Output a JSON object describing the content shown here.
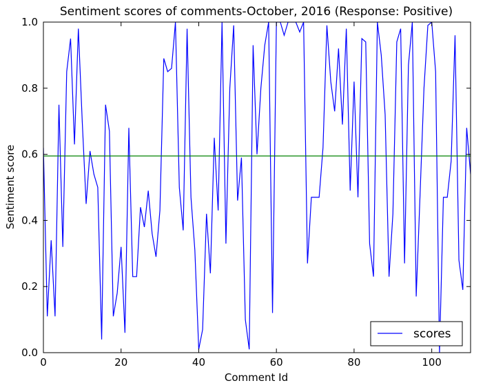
{
  "chart_data": {
    "type": "line",
    "title": "Sentiment scores of comments-October, 2016 (Response: Positive)",
    "xlabel": "Comment Id",
    "ylabel": "Sentiment score",
    "xlim": [
      0,
      110
    ],
    "ylim": [
      0.0,
      1.0
    ],
    "xticks": [
      "0",
      "20",
      "40",
      "60",
      "80",
      "100"
    ],
    "yticks": [
      "0.0",
      "0.2",
      "0.4",
      "0.6",
      "0.8",
      "1.0"
    ],
    "grid": false,
    "legend_placement": "bottom-right",
    "series": [
      {
        "name": "scores",
        "color": "#0000ff",
        "x": [
          0,
          1,
          2,
          3,
          4,
          5,
          6,
          7,
          8,
          9,
          10,
          11,
          12,
          13,
          14,
          15,
          16,
          17,
          18,
          19,
          20,
          21,
          22,
          23,
          24,
          25,
          26,
          27,
          28,
          29,
          30,
          31,
          32,
          33,
          34,
          35,
          36,
          37,
          38,
          39,
          40,
          41,
          42,
          43,
          44,
          45,
          46,
          47,
          48,
          49,
          50,
          51,
          52,
          53,
          54,
          55,
          56,
          57,
          58,
          59,
          60,
          61,
          62,
          63,
          64,
          65,
          66,
          67,
          68,
          69,
          70,
          71,
          72,
          73,
          74,
          75,
          76,
          77,
          78,
          79,
          80,
          81,
          82,
          83,
          84,
          85,
          86,
          87,
          88,
          89,
          90,
          91,
          92,
          93,
          94,
          95,
          96,
          97,
          98,
          99,
          100,
          101,
          102,
          103,
          104,
          105,
          106,
          107,
          108,
          109,
          110
        ],
        "values": [
          0.62,
          0.11,
          0.34,
          0.11,
          0.75,
          0.32,
          0.85,
          0.95,
          0.63,
          0.98,
          0.7,
          0.45,
          0.61,
          0.54,
          0.5,
          0.04,
          0.75,
          0.67,
          0.11,
          0.18,
          0.32,
          0.06,
          0.68,
          0.23,
          0.23,
          0.44,
          0.38,
          0.49,
          0.36,
          0.29,
          0.43,
          0.89,
          0.85,
          0.86,
          1.0,
          0.5,
          0.37,
          0.98,
          0.47,
          0.31,
          0.01,
          0.07,
          0.42,
          0.24,
          0.65,
          0.43,
          1.0,
          0.33,
          0.8,
          0.99,
          0.46,
          0.59,
          0.1,
          0.01,
          0.93,
          0.6,
          0.8,
          0.93,
          1.0,
          0.12,
          1.0,
          1.0,
          0.96,
          1.0,
          1.0,
          1.0,
          0.97,
          1.0,
          0.27,
          0.47,
          0.47,
          0.47,
          0.62,
          0.99,
          0.82,
          0.73,
          0.92,
          0.69,
          0.98,
          0.49,
          0.82,
          0.47,
          0.95,
          0.94,
          0.33,
          0.23,
          1.0,
          0.9,
          0.72,
          0.23,
          0.42,
          0.94,
          0.98,
          0.27,
          0.87,
          1.0,
          0.17,
          0.48,
          0.8,
          0.99,
          1.0,
          0.85,
          0.0,
          0.47,
          0.47,
          0.58,
          0.96,
          0.28,
          0.19,
          0.68,
          0.54
        ]
      },
      {
        "name": "",
        "color": "#008000",
        "x": [
          0,
          110
        ],
        "values": [
          0.595,
          0.595
        ]
      }
    ]
  }
}
